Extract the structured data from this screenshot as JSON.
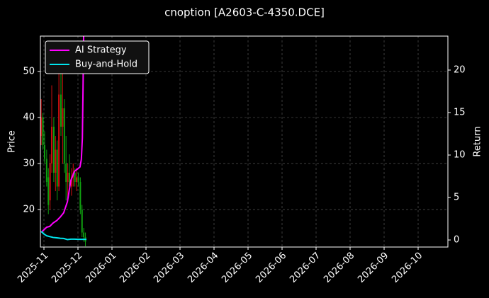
{
  "chart_data": {
    "type": "candlestick",
    "title": "cnoption [A2603-C-4350.DCE]",
    "ylabel": "Price",
    "y2label": "Return",
    "x": [
      -0.08,
      -0.03,
      0.02,
      0.08,
      0.13,
      0.18,
      0.23,
      0.29,
      0.34,
      0.39,
      0.44,
      0.5,
      0.55,
      0.6,
      0.65,
      0.7,
      0.75,
      0.81,
      0.86,
      0.91,
      0.96,
      1.01,
      1.07,
      1.12,
      1.17,
      1.22
    ],
    "open": [
      36,
      40,
      34,
      31,
      27,
      22,
      30,
      38,
      28,
      33,
      25,
      45,
      38,
      42,
      30,
      26,
      28,
      25,
      27,
      28,
      26,
      27,
      26,
      20,
      15,
      14
    ],
    "high": [
      44,
      41,
      37,
      33,
      29,
      32,
      47,
      40,
      36,
      35,
      52,
      54,
      50,
      44,
      36,
      30,
      32,
      29,
      30,
      29,
      29,
      28,
      27,
      21,
      16,
      15
    ],
    "low": [
      34,
      33,
      30,
      25,
      19,
      20,
      28,
      26,
      24,
      22,
      24,
      36,
      30,
      28,
      22,
      22,
      24,
      23,
      25,
      25,
      24,
      25,
      19,
      14,
      13,
      12
    ],
    "close": [
      40,
      34,
      31,
      26,
      21,
      30,
      38,
      28,
      33,
      25,
      45,
      38,
      42,
      30,
      26,
      28,
      25,
      27,
      28,
      26,
      27,
      26,
      20,
      15,
      14,
      13
    ],
    "up_color": "#d01010",
    "down_color": "#10a010",
    "series": [
      {
        "name": "AI Strategy",
        "color": "#ff00ff",
        "axis": "y2",
        "x": [
          -0.08,
          0,
          0.08,
          0.17,
          0.27,
          0.38,
          0.48,
          0.58,
          0.69,
          0.79,
          0.9,
          1.0,
          1.06,
          1.1,
          1.13,
          1.15,
          1.17
        ],
        "values": [
          0.9,
          1.2,
          1.5,
          1.6,
          2.0,
          2.3,
          2.7,
          3.2,
          4.5,
          7,
          8.1,
          8.4,
          8.6,
          9.5,
          12,
          18,
          25
        ]
      },
      {
        "name": "Buy-and-Hold",
        "color": "#00e5ee",
        "axis": "y2",
        "x": [
          -0.08,
          0,
          0.08,
          0.17,
          0.27,
          0.38,
          0.48,
          0.58,
          0.69,
          0.79,
          0.9,
          1.0,
          1.06,
          1.1,
          1.13,
          1.15,
          1.17,
          1.25
        ],
        "values": [
          1.0,
          0.7,
          0.5,
          0.4,
          0.3,
          0.25,
          0.2,
          0.18,
          0.05,
          0.1,
          0.1,
          0.08,
          0.08,
          0.08,
          0.08,
          0.08,
          0.08,
          0.08
        ]
      }
    ],
    "xlim": [
      -0.104,
      11.875
    ],
    "xticks": [
      {
        "value": 0,
        "label": "2025-11"
      },
      {
        "value": 1,
        "label": "2025-12"
      },
      {
        "value": 2,
        "label": "2026-01"
      },
      {
        "value": 3,
        "label": "2026-02"
      },
      {
        "value": 4,
        "label": "2026-03"
      },
      {
        "value": 5,
        "label": "2026-04"
      },
      {
        "value": 6,
        "label": "2026-05"
      },
      {
        "value": 7,
        "label": "2026-06"
      },
      {
        "value": 8,
        "label": "2026-07"
      },
      {
        "value": 9,
        "label": "2026-08"
      },
      {
        "value": 10,
        "label": "2026-09"
      },
      {
        "value": 11,
        "label": "2026-10"
      }
    ],
    "ylim": [
      11.85,
      57.7
    ],
    "yticks": [
      20,
      30,
      40,
      50
    ],
    "y2lim": [
      -0.83,
      24.0
    ],
    "y2ticks": [
      0,
      5,
      10,
      15,
      20
    ],
    "grid": true,
    "legend": "upper left"
  }
}
